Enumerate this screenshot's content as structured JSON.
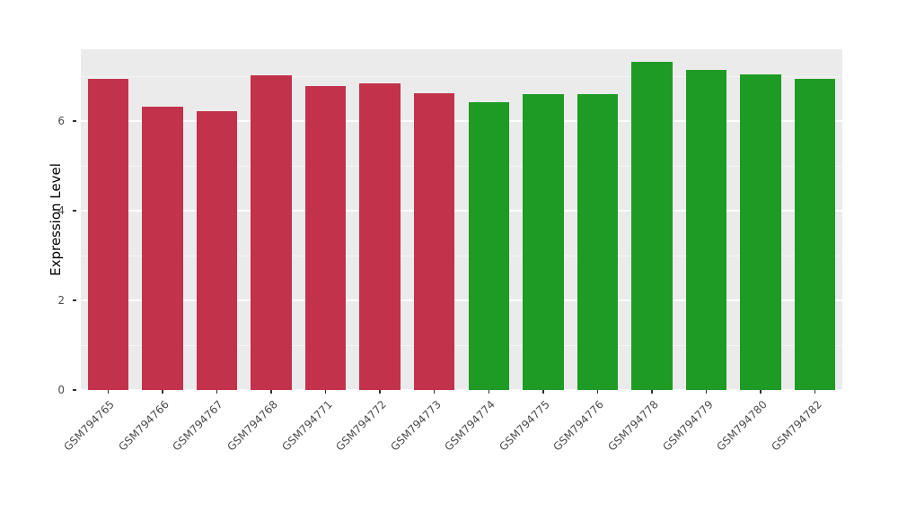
{
  "figure": {
    "background": "#FFFFFF",
    "panel_background": "#EBEBEB",
    "grid_major_color": "#FFFFFF",
    "axis_text_color": "#4D4D4D"
  },
  "chart_data": {
    "type": "bar",
    "title": "",
    "xlabel": "",
    "ylabel": "Expression Level",
    "categories": [
      "GSM794765",
      "GSM794766",
      "GSM794767",
      "GSM794768",
      "GSM794771",
      "GSM794772",
      "GSM794773",
      "GSM794774",
      "GSM794775",
      "GSM794776",
      "GSM794778",
      "GSM794779",
      "GSM794780",
      "GSM794782"
    ],
    "values": [
      6.95,
      6.32,
      6.22,
      7.02,
      6.78,
      6.85,
      6.62,
      6.42,
      6.6,
      6.6,
      7.32,
      7.15,
      7.05,
      6.95
    ],
    "bar_colors": [
      "#C2324B",
      "#C2324B",
      "#C2324B",
      "#C2324B",
      "#C2324B",
      "#C2324B",
      "#C2324B",
      "#1E9B24",
      "#1E9B24",
      "#1E9B24",
      "#1E9B24",
      "#1E9B24",
      "#1E9B24",
      "#1E9B24"
    ],
    "groups": {
      "red_group": [
        "GSM794765",
        "GSM794766",
        "GSM794767",
        "GSM794768",
        "GSM794771",
        "GSM794772",
        "GSM794773"
      ],
      "green_group": [
        "GSM794774",
        "GSM794775",
        "GSM794776",
        "GSM794778",
        "GSM794779",
        "GSM794780",
        "GSM794782"
      ]
    },
    "ylim": [
      0,
      7.6
    ],
    "yticks": [
      0,
      2,
      4,
      6
    ],
    "minor_ticks": [
      1,
      3,
      5,
      7
    ],
    "grid": true,
    "legend_position": "none",
    "bar_width_fraction": 0.75,
    "x_label_angle": 45
  }
}
